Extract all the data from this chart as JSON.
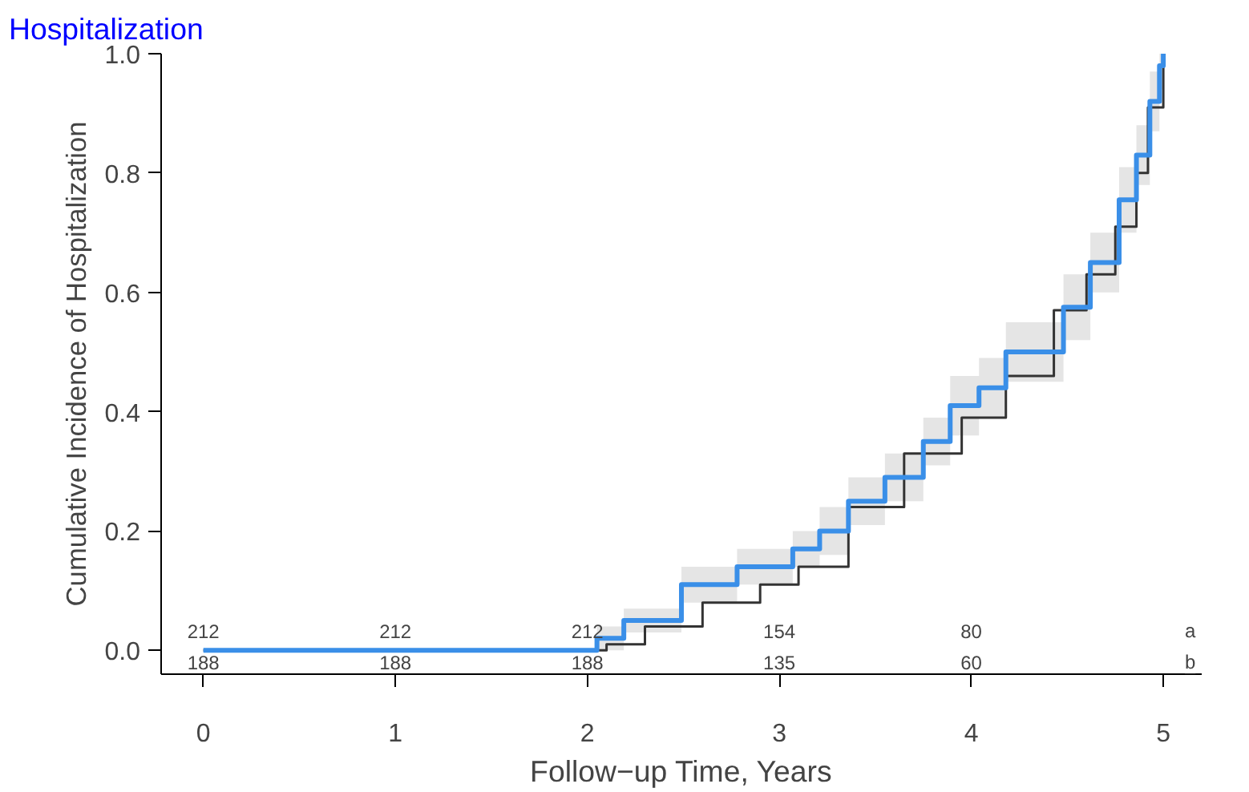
{
  "chart_data": {
    "type": "step",
    "title": "Hospitalization",
    "xlabel": "Follow−up Time, Years",
    "ylabel": "Cumulative Incidence of Hospitalization",
    "xlim": [
      -0.22,
      5.2
    ],
    "ylim": [
      -0.04,
      1.0
    ],
    "xticks": [
      0,
      1,
      2,
      3,
      4,
      5
    ],
    "yticks": [
      {
        "value": 0,
        "label": "0.0"
      },
      0.2,
      0.4,
      0.6,
      0.8,
      {
        "value": 1,
        "label": "1.0"
      }
    ],
    "grid": false,
    "series": [
      {
        "color": "#333333",
        "x": [
          0,
          2.0,
          2.1,
          2.3,
          2.6,
          2.9,
          3.1,
          3.36,
          3.65,
          3.95,
          4.18,
          4.43,
          4.6,
          4.75,
          4.86,
          4.92,
          4.99,
          5.0
        ],
        "values": [
          0,
          0,
          0.01,
          0.04,
          0.08,
          0.11,
          0.14,
          0.24,
          0.33,
          0.39,
          0.46,
          0.57,
          0.63,
          0.71,
          0.8,
          0.91,
          0.91,
          1.0
        ]
      },
      {
        "color": "#3a8fe8",
        "x": [
          0,
          2.0,
          2.05,
          2.19,
          2.49,
          2.78,
          3.07,
          3.21,
          3.36,
          3.55,
          3.75,
          3.89,
          4.04,
          4.18,
          4.37,
          4.48,
          4.62,
          4.77,
          4.86,
          4.93,
          4.98,
          5.0
        ],
        "values": [
          0,
          0,
          0.02,
          0.05,
          0.11,
          0.14,
          0.17,
          0.2,
          0.25,
          0.29,
          0.35,
          0.41,
          0.44,
          0.5,
          0.5,
          0.575,
          0.65,
          0.755,
          0.83,
          0.92,
          0.98,
          1.0
        ],
        "lower": [
          0,
          0,
          0.0,
          0.03,
          0.08,
          0.11,
          0.14,
          0.16,
          0.21,
          0.25,
          0.31,
          0.36,
          0.39,
          0.45,
          0.45,
          0.52,
          0.6,
          0.7,
          0.78,
          0.87,
          0.94,
          0.97
        ],
        "upper": [
          0,
          0,
          0.04,
          0.07,
          0.14,
          0.17,
          0.2,
          0.24,
          0.29,
          0.33,
          0.39,
          0.46,
          0.49,
          0.55,
          0.55,
          0.63,
          0.7,
          0.81,
          0.88,
          0.97,
          1.0,
          1.0
        ]
      }
    ],
    "annotations": [
      "212",
      "212",
      "212",
      "154",
      "80",
      "a",
      "188",
      "188",
      "188",
      "135",
      "60",
      "b"
    ]
  }
}
